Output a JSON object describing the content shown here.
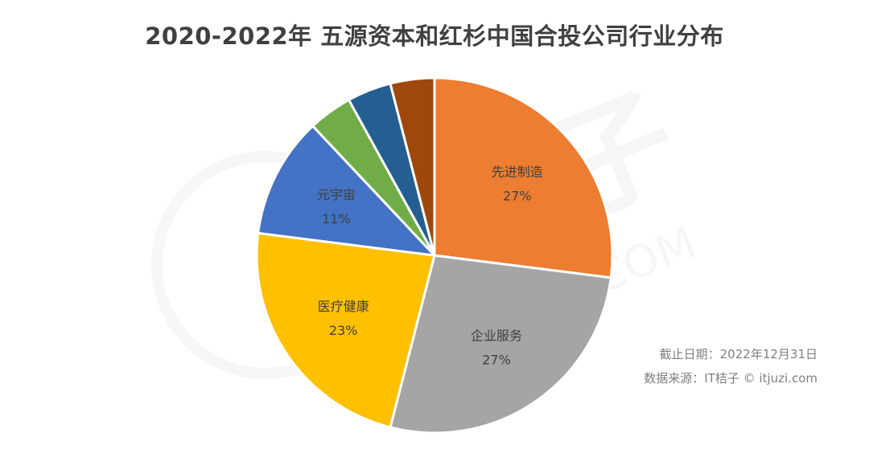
{
  "chart_data": {
    "type": "pie",
    "title": "2020-2022年 五源资本和红杉中国合投公司行业分布",
    "slices": [
      {
        "label": "先进制造",
        "value": 27,
        "value_label": "27%",
        "color": "#ED7D31"
      },
      {
        "label": "企业服务",
        "value": 27,
        "value_label": "27%",
        "color": "#A5A5A5"
      },
      {
        "label": "医疗健康",
        "value": 23,
        "value_label": "23%",
        "color": "#FFC000"
      },
      {
        "label": "元宇宙",
        "value": 11,
        "value_label": "11%",
        "color": "#4472C4"
      },
      {
        "label": "",
        "value": 4,
        "value_label": "",
        "color": "#70AD47"
      },
      {
        "label": "",
        "value": 4,
        "value_label": "",
        "color": "#255E91"
      },
      {
        "label": "",
        "value": 4,
        "value_label": "",
        "color": "#9E480E"
      }
    ],
    "start_angle_deg": 0,
    "direction": "clockwise"
  },
  "notes": {
    "date": "截止日期：2022年12月31日",
    "source": "数据来源：IT桔子 © itjuzi.com"
  },
  "watermark": {
    "brand": "IT桔子",
    "domain": ".COM"
  }
}
